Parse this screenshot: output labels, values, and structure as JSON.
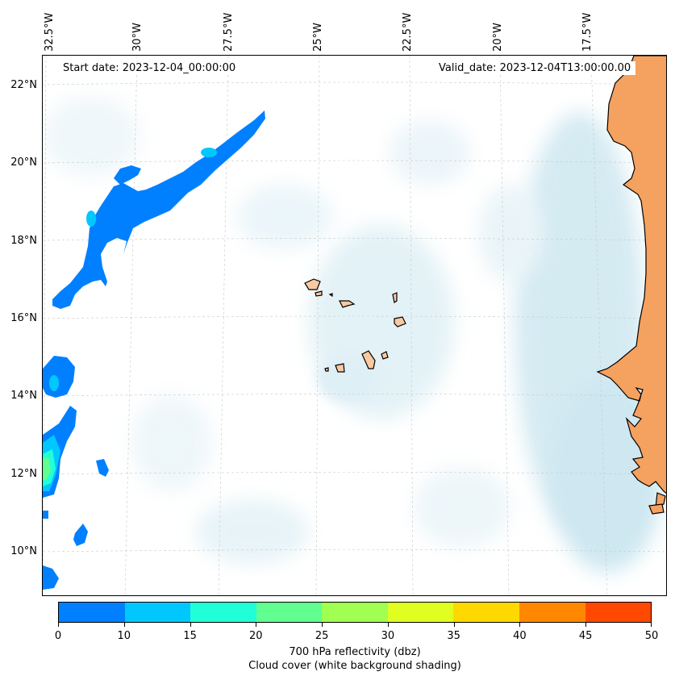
{
  "map": {
    "start_date": "Start date: 2023-12-04_00:00:00",
    "valid_date": "Valid_date: 2023-12-04T13:00:00.00",
    "longitude_labels": [
      "32.5°W",
      "30°W",
      "27.5°W",
      "25°W",
      "22.5°W",
      "20°W",
      "17.5°W"
    ],
    "latitude_labels": [
      "22°N",
      "20°N",
      "18°N",
      "16°N",
      "14°N",
      "12°N",
      "10°N"
    ],
    "land_color": "#f5a15f",
    "island_color": "#f9c9a0",
    "cloud_color": "#b2dae8"
  },
  "colorbar": {
    "ticks": [
      "0",
      "10",
      "15",
      "20",
      "25",
      "30",
      "35",
      "40",
      "45",
      "50"
    ],
    "colors": [
      "#0080ff",
      "#00c8ff",
      "#20ffd8",
      "#60ff90",
      "#a0ff50",
      "#e0ff20",
      "#ffd800",
      "#ff8800",
      "#ff4800"
    ],
    "label_line1": "700 hPa reflectivity (dbz)",
    "label_line2": "Cloud cover (white background shading)"
  }
}
